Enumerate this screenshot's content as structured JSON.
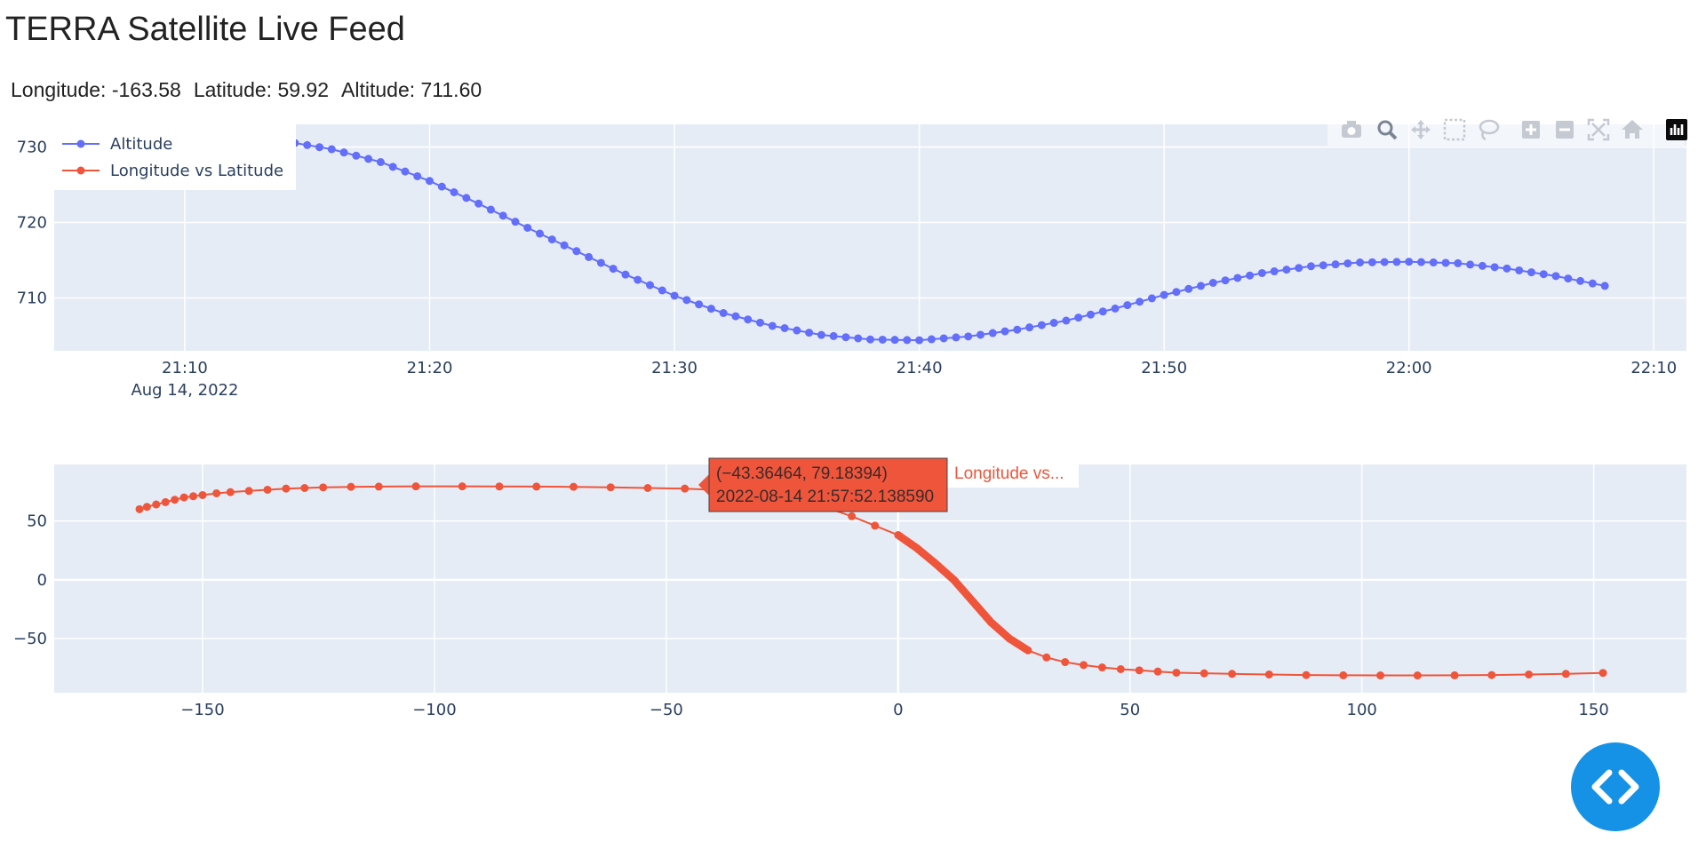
{
  "page": {
    "title": "TERRA Satellite Live Feed",
    "readout": {
      "longitude": "Longitude: -163.58",
      "latitude": "Latitude: 59.92",
      "altitude": "Altitude: 711.60"
    }
  },
  "colors": {
    "plot_bg": "#e5ecf6",
    "grid": "#ffffff",
    "altitude": "#636efa",
    "track": "#ef553b",
    "axis_text": "#2a3f5f",
    "fab": "#1592e6"
  },
  "modebar": [
    "camera-icon",
    "zoom-icon",
    "pan-icon",
    "box-select-icon",
    "lasso-icon",
    "zoom-in-icon",
    "zoom-out-icon",
    "autoscale-icon",
    "reset-axes-icon",
    "plotly-logo-icon"
  ],
  "legend": {
    "items": [
      {
        "label": "Altitude",
        "color": "#636efa"
      },
      {
        "label": "Longitude vs Latitude",
        "color": "#ef553b"
      }
    ]
  },
  "hover": {
    "line1": "(−43.36464, 79.18394)",
    "line2": "2022-08-14 21:57:52.138590",
    "name": "Longitude vs..."
  },
  "chart_data": [
    {
      "type": "line",
      "mode": "lines+markers",
      "x_type": "time",
      "x_ticks": [
        "21:10",
        "21:20",
        "21:30",
        "21:40",
        "21:50",
        "22:00",
        "22:10"
      ],
      "x_tick_sublabel": "Aug 14, 2022",
      "x_range": [
        "21:04:40",
        "22:11:20"
      ],
      "y_ticks": [
        710,
        720,
        730
      ],
      "y_range": [
        703.0,
        733.0
      ],
      "series": [
        {
          "name": "Altitude",
          "x": [
            "21:14:00",
            "21:16:00",
            "21:18:00",
            "21:20:00",
            "21:22:00",
            "21:24:00",
            "21:26:00",
            "21:28:00",
            "21:30:00",
            "21:32:00",
            "21:34:00",
            "21:36:00",
            "21:38:00",
            "21:40:00",
            "21:42:00",
            "21:44:00",
            "21:46:00",
            "21:48:00",
            "21:50:00",
            "21:52:00",
            "21:54:00",
            "21:56:00",
            "21:58:00",
            "22:00:00",
            "22:02:00",
            "22:04:00",
            "22:06:00",
            "22:08:00"
          ],
          "y": [
            730.8,
            729.7,
            728.0,
            725.5,
            722.5,
            719.3,
            716.2,
            713.1,
            710.3,
            708.0,
            706.3,
            705.1,
            704.5,
            704.4,
            704.9,
            705.8,
            707.0,
            708.6,
            710.4,
            712.0,
            713.3,
            714.2,
            714.7,
            714.8,
            714.6,
            713.9,
            712.9,
            711.6
          ]
        }
      ]
    },
    {
      "type": "line",
      "mode": "lines+markers",
      "x_ticks": [
        -150,
        -100,
        -50,
        0,
        50,
        100,
        150
      ],
      "y_ticks": [
        -50,
        0,
        50
      ],
      "x_range": [
        -182,
        170
      ],
      "y_range": [
        -96,
        98
      ],
      "series": [
        {
          "name": "Longitude vs Latitude",
          "x": [
            -163.6,
            -162,
            -160,
            -158,
            -156,
            -154,
            -152,
            -150,
            -147,
            -144,
            -140,
            -136,
            -132,
            -128,
            -124,
            -118,
            -112,
            -104,
            -94,
            -86,
            -78,
            -70,
            -62,
            -54,
            -46,
            -40,
            -34,
            -28,
            -22,
            -16,
            -10,
            -5,
            0,
            4,
            8,
            12,
            16,
            20,
            24,
            28,
            32,
            36,
            40,
            44,
            48,
            52,
            56,
            60,
            66,
            72,
            80,
            88,
            96,
            104,
            112,
            120,
            128,
            136,
            144,
            152
          ],
          "y": [
            60,
            62,
            64,
            66,
            68,
            70,
            71,
            72,
            73.5,
            74.5,
            75.5,
            76.5,
            77.5,
            78,
            78.5,
            79,
            79.2,
            79.4,
            79.4,
            79.3,
            79.2,
            79,
            78.6,
            78,
            77.5,
            76.5,
            75,
            72,
            68,
            62,
            54,
            46,
            38,
            27,
            14,
            0,
            -18,
            -36,
            -50,
            -60,
            -66,
            -70,
            -72.5,
            -74.5,
            -76,
            -77,
            -78,
            -79,
            -79.5,
            -80,
            -80.5,
            -81,
            -81.2,
            -81.3,
            -81.3,
            -81.2,
            -81,
            -80.5,
            -80,
            -79.2
          ]
        }
      ]
    }
  ],
  "fab": {
    "icon": "code-icon"
  }
}
